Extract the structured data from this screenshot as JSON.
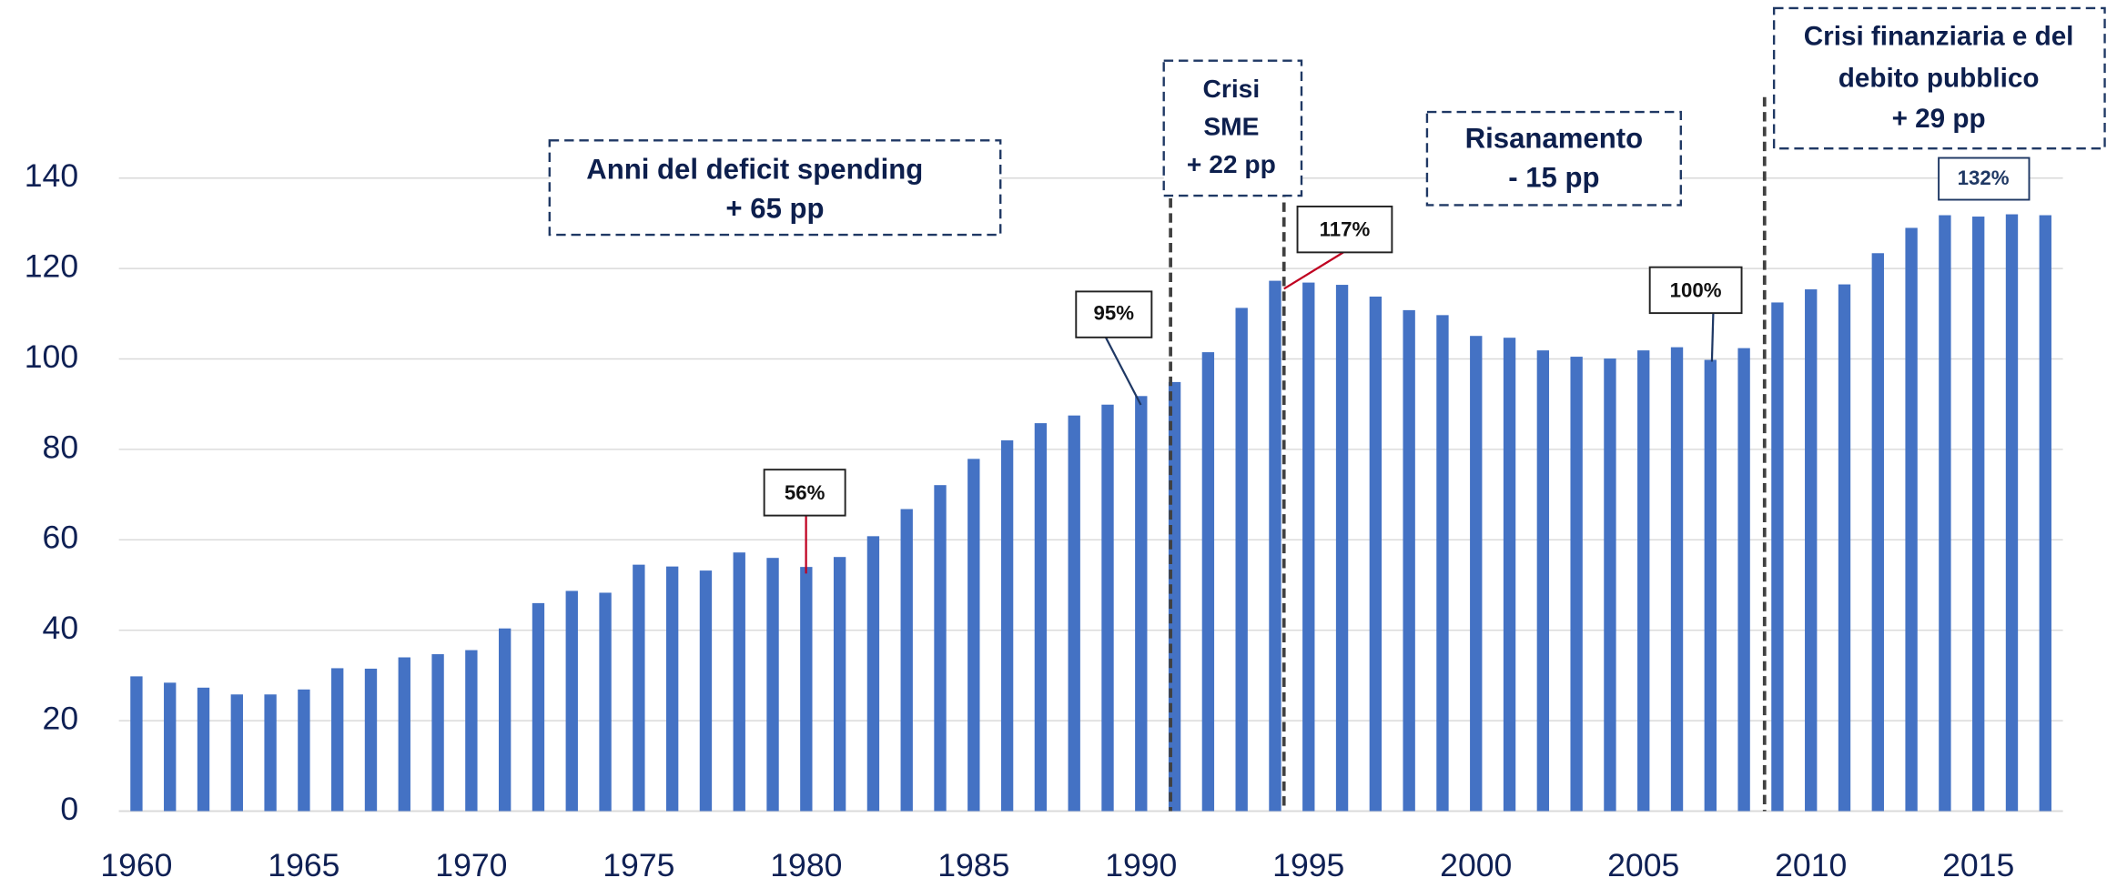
{
  "chart_data": {
    "type": "bar",
    "categories": [
      "1960",
      null,
      null,
      null,
      null,
      "1965",
      null,
      null,
      null,
      null,
      "1970",
      null,
      null,
      null,
      null,
      "1975",
      null,
      null,
      null,
      null,
      "1980",
      null,
      null,
      null,
      null,
      "1985",
      null,
      null,
      null,
      null,
      "1990",
      null,
      null,
      null,
      null,
      "1995",
      null,
      null,
      null,
      null,
      "2000",
      null,
      null,
      null,
      null,
      "2005",
      null,
      null,
      null,
      null,
      "2010",
      null,
      null,
      null,
      null,
      "2015",
      null,
      null
    ],
    "values": [
      29.8,
      28.4,
      27.3,
      25.8,
      25.8,
      26.9,
      31.6,
      31.5,
      34.0,
      34.7,
      35.6,
      40.4,
      46.0,
      48.7,
      48.3,
      54.5,
      54.1,
      53.2,
      57.2,
      56.0,
      54.0,
      56.2,
      60.8,
      66.8,
      72.1,
      77.9,
      82.0,
      85.8,
      87.5,
      89.9,
      91.8,
      94.9,
      101.5,
      111.3,
      117.3,
      116.9,
      116.4,
      113.8,
      110.8,
      109.7,
      105.1,
      104.7,
      101.9,
      100.5,
      100.1,
      101.9,
      102.6,
      99.8,
      102.4,
      112.5,
      115.4,
      116.5,
      123.4,
      129.0,
      131.8,
      131.5,
      132.0,
      131.8
    ],
    "color": "#4472c4",
    "ylim": [
      0,
      140
    ],
    "yticks": [
      0,
      20,
      40,
      60,
      80,
      100,
      120,
      140
    ],
    "grid": true,
    "annotations": [
      {
        "lines": [
          "Anni del deficit spending",
          "+ 65 pp"
        ]
      },
      {
        "lines": [
          "Crisi",
          "SME",
          "+ 22 pp"
        ]
      },
      {
        "lines": [
          "Risanamento",
          "- 15 pp"
        ]
      },
      {
        "lines": [
          "Crisi finanziaria e del",
          "debito pubblico",
          "+ 29 pp"
        ]
      }
    ],
    "callouts": [
      "56%",
      "95%",
      "117%",
      "100%",
      "132%"
    ]
  }
}
